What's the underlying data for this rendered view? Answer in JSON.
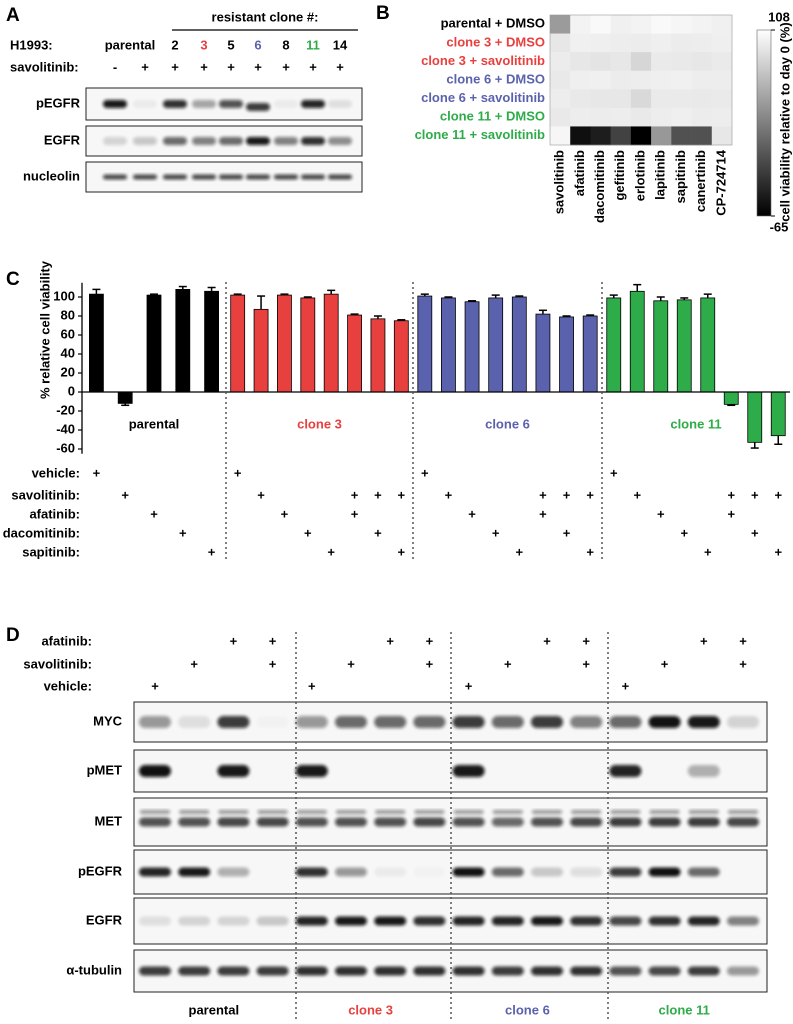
{
  "panel_labels": [
    "A",
    "B",
    "C",
    "D"
  ],
  "panel_a": {
    "header": "resistant clone #:",
    "cell_line": "H1993:",
    "lanes": [
      {
        "label": "parental",
        "color": "#000000"
      },
      {
        "label": "2",
        "color": "#000000"
      },
      {
        "label": "3",
        "color": "#e8403f"
      },
      {
        "label": "5",
        "color": "#000000"
      },
      {
        "label": "6",
        "color": "#5b62ad"
      },
      {
        "label": "8",
        "color": "#000000"
      },
      {
        "label": "11",
        "color": "#2eac4a"
      },
      {
        "label": "14",
        "color": "#000000"
      }
    ],
    "treatment": "savolitinib:",
    "treatment_marks": [
      "-",
      "+",
      "+",
      "+",
      "+",
      "+",
      "+",
      "+",
      "+"
    ],
    "blots": [
      "pEGFR",
      "EGFR",
      "nucleolin"
    ]
  },
  "chart_data": [
    {
      "type": "heatmap",
      "y_categories": [
        "parental + DMSO",
        "clone 3 + DMSO",
        "clone 3 + savolitinib",
        "clone 6 + DMSO",
        "clone 6 + savolitinib",
        "clone 11 + DMSO",
        "clone 11 + savolitinib"
      ],
      "row_colors": [
        "#000000",
        "#e8403f",
        "#e8403f",
        "#5b62ad",
        "#5b62ad",
        "#2eac4a",
        "#2eac4a"
      ],
      "x_categories": [
        "savolitinib",
        "afatinib",
        "dacomitinib",
        "gefitinib",
        "erlotinib",
        "lapitinib",
        "sapitinib",
        "canertinib",
        "CP-724714"
      ],
      "values": [
        [
          40,
          100,
          104,
          98,
          100,
          104,
          102,
          100,
          98
        ],
        [
          92,
          98,
          97,
          96,
          95,
          97,
          95,
          96,
          97
        ],
        [
          95,
          92,
          90,
          92,
          80,
          94,
          93,
          92,
          94
        ],
        [
          93,
          97,
          98,
          95,
          96,
          97,
          98,
          96,
          96
        ],
        [
          96,
          93,
          92,
          92,
          82,
          94,
          94,
          93,
          94
        ],
        [
          93,
          96,
          95,
          96,
          93,
          96,
          97,
          95,
          96
        ],
        [
          102,
          -55,
          -45,
          -20,
          -65,
          38,
          -10,
          -10,
          92
        ]
      ],
      "colorbar": {
        "label": "cell viability relative to day 0 (%)",
        "lim": [
          -65,
          108
        ],
        "ticks": [
          108,
          -65
        ]
      }
    },
    {
      "type": "bar",
      "y_label": "% relative cell viability",
      "ylim": [
        -65,
        115
      ],
      "yticks": [
        100,
        80,
        60,
        40,
        20,
        0,
        -20,
        -40,
        -60
      ],
      "series": [
        {
          "name": "parental",
          "color": "#000000",
          "values": [
            103,
            -12,
            102,
            108,
            106
          ],
          "errors": [
            5,
            2,
            1,
            3,
            4
          ]
        },
        {
          "name": "clone 3",
          "color": "#e8403f",
          "values": [
            102,
            87,
            102,
            99,
            103,
            81,
            77,
            75
          ],
          "errors": [
            1,
            14,
            1,
            1,
            4,
            1,
            3,
            1
          ]
        },
        {
          "name": "clone 6",
          "color": "#5b62ad",
          "values": [
            101,
            99,
            95,
            99,
            100,
            82,
            79,
            80
          ],
          "errors": [
            2,
            1,
            1,
            3,
            1,
            4,
            1,
            1
          ]
        },
        {
          "name": "clone 11",
          "color": "#2eac4a",
          "values": [
            99,
            106,
            96,
            97,
            99,
            -13,
            -53,
            -46
          ],
          "errors": [
            3,
            7,
            4,
            2,
            4,
            1,
            6,
            9
          ]
        }
      ],
      "treatments": [
        {
          "name": "vehicle:",
          "marks": [
            "+",
            null,
            null,
            null,
            null,
            "+",
            null,
            null,
            null,
            null,
            null,
            null,
            null,
            "+",
            null,
            null,
            null,
            null,
            null,
            null,
            null,
            "+",
            null,
            null,
            null,
            null,
            null,
            null,
            null
          ]
        },
        {
          "name": "savolitinib:",
          "marks": [
            null,
            "+",
            null,
            null,
            null,
            null,
            "+",
            null,
            null,
            null,
            "+",
            "+",
            "+",
            null,
            "+",
            null,
            null,
            null,
            "+",
            "+",
            "+",
            null,
            "+",
            null,
            null,
            null,
            "+",
            "+",
            "+"
          ]
        },
        {
          "name": "afatinib:",
          "marks": [
            null,
            null,
            "+",
            null,
            null,
            null,
            null,
            "+",
            null,
            null,
            "+",
            null,
            null,
            null,
            null,
            "+",
            null,
            null,
            "+",
            null,
            null,
            null,
            null,
            "+",
            null,
            null,
            "+",
            null,
            null
          ]
        },
        {
          "name": "dacomitinib:",
          "marks": [
            null,
            null,
            null,
            "+",
            null,
            null,
            null,
            null,
            "+",
            null,
            null,
            "+",
            null,
            null,
            null,
            null,
            "+",
            null,
            null,
            "+",
            null,
            null,
            null,
            null,
            "+",
            null,
            null,
            "+",
            null
          ]
        },
        {
          "name": "sapitinib:",
          "marks": [
            null,
            null,
            null,
            null,
            "+",
            null,
            null,
            null,
            null,
            "+",
            null,
            null,
            "+",
            null,
            null,
            null,
            null,
            "+",
            null,
            null,
            "+",
            null,
            null,
            null,
            null,
            "+",
            null,
            null,
            "+"
          ]
        }
      ]
    }
  ],
  "panel_d": {
    "treatments": [
      {
        "name": "afatinib:",
        "marks": [
          null,
          null,
          "+",
          "+",
          null,
          null,
          "+",
          "+",
          null,
          null,
          "+",
          "+",
          null,
          null,
          "+",
          "+"
        ]
      },
      {
        "name": "savolitinib:",
        "marks": [
          null,
          "+",
          null,
          "+",
          null,
          "+",
          null,
          "+",
          null,
          "+",
          null,
          "+",
          null,
          "+",
          null,
          "+"
        ]
      },
      {
        "name": "vehicle:",
        "marks": [
          "+",
          null,
          null,
          null,
          "+",
          null,
          null,
          null,
          "+",
          null,
          null,
          null,
          "+",
          null,
          null,
          null
        ]
      }
    ],
    "blots": [
      "MYC",
      "pMET",
      "MET",
      "pEGFR",
      "EGFR",
      "α-tubulin"
    ],
    "groups": [
      {
        "name": "parental",
        "color": "#000000"
      },
      {
        "name": "clone 3",
        "color": "#e8403f"
      },
      {
        "name": "clone 6",
        "color": "#5b62ad"
      },
      {
        "name": "clone 11",
        "color": "#2eac4a"
      }
    ]
  }
}
